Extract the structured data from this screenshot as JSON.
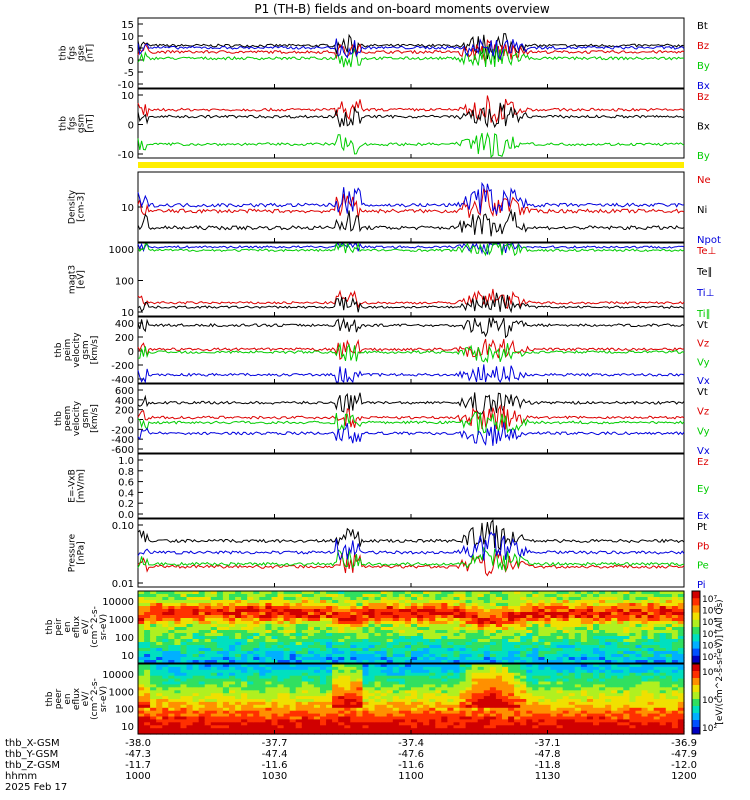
{
  "title": "P1 (TH-B) fields and on-board moments overview",
  "colors": {
    "black": "#000000",
    "red": "#dd0000",
    "green": "#00cc00",
    "blue": "#0000dd",
    "yellow": "#ffee00"
  },
  "bottom_axis": {
    "labels": [
      "thb_X-GSM",
      "thb_Y-GSM",
      "thb_Z-GSM",
      "hhmm",
      "2025 Feb 17"
    ],
    "columns": [
      [
        "-38.0",
        "-47.3",
        "-11.7",
        "1000"
      ],
      [
        "-37.7",
        "-47.4",
        "-11.6",
        "1030"
      ],
      [
        "-37.4",
        "-47.6",
        "-11.6",
        "1100"
      ],
      [
        "-37.1",
        "-47.8",
        "-11.8",
        "1130"
      ],
      [
        "-36.9",
        "-47.9",
        "-12.0",
        "1200"
      ]
    ]
  },
  "chart_data": [
    {
      "type": "line",
      "id": "fgs_gse",
      "ylabel_lines": [
        "thb",
        "fgs",
        "gse",
        "[nT]"
      ],
      "ylim": [
        -15,
        18
      ],
      "yticks": [
        "15",
        "10",
        "5",
        "0",
        "-5",
        "-10"
      ],
      "series": [
        {
          "name": "Bt",
          "color": "black",
          "level": 5
        },
        {
          "name": "Bz",
          "color": "red",
          "level": 2
        },
        {
          "name": "By",
          "color": "green",
          "level": -1
        },
        {
          "name": "Bx",
          "color": "blue",
          "level": 4
        }
      ]
    },
    {
      "type": "line",
      "id": "fgs_gsm",
      "ylabel_lines": [
        "thb",
        "fgs",
        "gsm",
        "[nT]"
      ],
      "ylim": [
        -18,
        22
      ],
      "yticks": [
        "10",
        "0",
        "-10"
      ],
      "series": [
        {
          "name": "Bz",
          "color": "red",
          "level": 10
        },
        {
          "name": "Bx",
          "color": "black",
          "level": 6
        },
        {
          "name": "By",
          "color": "green",
          "level": -10
        }
      ]
    },
    {
      "type": "line",
      "id": "density",
      "ylabel_lines": [
        "Density",
        "[cm-3]"
      ],
      "log": true,
      "ylim": [
        2,
        60
      ],
      "yticks": [
        "10"
      ],
      "series": [
        {
          "name": "Ne",
          "color": "red",
          "level": 9
        },
        {
          "name": "Ni",
          "color": "black",
          "level": 4
        },
        {
          "name": "Npot",
          "color": "blue",
          "level": 12
        }
      ]
    },
    {
      "type": "line",
      "id": "temperature",
      "ylabel_lines": [
        "magt3",
        "[eV]"
      ],
      "log": true,
      "ylim": [
        5,
        1500
      ],
      "yticks": [
        "1000",
        "100",
        "10"
      ],
      "series": [
        {
          "name": "Te⊥",
          "color": "red",
          "level": 14
        },
        {
          "name": "Te∥",
          "color": "black",
          "level": 10
        },
        {
          "name": "Ti⊥",
          "color": "blue",
          "level": 1100
        },
        {
          "name": "Ti∥",
          "color": "green",
          "level": 850
        }
      ]
    },
    {
      "type": "line",
      "id": "peim_velocity",
      "ylabel_lines": [
        "thb",
        "peim",
        "velocity",
        "gsm",
        "[km/s]"
      ],
      "ylim": [
        -480,
        480
      ],
      "yticks": [
        "400",
        "200",
        "0",
        "-200",
        "-400"
      ],
      "series": [
        {
          "name": "Vt",
          "color": "black",
          "level": 360
        },
        {
          "name": "Vz",
          "color": "red",
          "level": 10
        },
        {
          "name": "Vy",
          "color": "green",
          "level": -30
        },
        {
          "name": "Vx",
          "color": "blue",
          "level": -360
        }
      ]
    },
    {
      "type": "line",
      "id": "peem_velocity",
      "ylabel_lines": [
        "thb",
        "peem",
        "velocity",
        "gsm",
        "[km/s]"
      ],
      "ylim": [
        -700,
        700
      ],
      "yticks": [
        "600",
        "400",
        "200",
        "0",
        "-200",
        "-400",
        "-600"
      ],
      "series": [
        {
          "name": "Vt",
          "color": "black",
          "level": 320
        },
        {
          "name": "Vz",
          "color": "red",
          "level": 20
        },
        {
          "name": "Vy",
          "color": "green",
          "level": -80
        },
        {
          "name": "Vx",
          "color": "blue",
          "level": -300
        }
      ]
    },
    {
      "type": "line",
      "id": "efield",
      "ylabel_lines": [
        "E=-VxB",
        "[mV/m]"
      ],
      "ylim": [
        0,
        1
      ],
      "yticks": [
        "1.0",
        "0.8",
        "0.6",
        "0.4",
        "0.2",
        "0.0"
      ],
      "series": [
        {
          "name": "Ez",
          "color": "red"
        },
        {
          "name": "Ey",
          "color": "green"
        },
        {
          "name": "Ex",
          "color": "blue"
        }
      ]
    },
    {
      "type": "line",
      "id": "pressure",
      "ylabel_lines": [
        "Pressure",
        "[nPa]"
      ],
      "log": true,
      "ylim": [
        0.005,
        0.3
      ],
      "yticks": [
        "0.10",
        "0.01"
      ],
      "series": [
        {
          "name": "Pt",
          "color": "black",
          "level": 0.08
        },
        {
          "name": "Pb",
          "color": "red",
          "level": 0.017
        },
        {
          "name": "Pe",
          "color": "green",
          "level": 0.02
        },
        {
          "name": "Pi",
          "color": "blue",
          "level": 0.04
        }
      ]
    },
    {
      "type": "heatmap",
      "id": "peir_en_eflux",
      "ylabel_lines": [
        "thb",
        "peir",
        "en",
        "eflux",
        "eV/",
        "(cm^2-s-",
        "sr-eV)"
      ],
      "yticks": [
        "10000",
        "1000",
        "100",
        "10"
      ]
    },
    {
      "type": "heatmap",
      "id": "peer_en_eflux",
      "ylabel_lines": [
        "thb",
        "peer",
        "en",
        "eflux",
        "eV/",
        "(cm^2-s-",
        "sr-eV)"
      ],
      "yticks": [
        "10000",
        "1000",
        "100",
        "10"
      ]
    }
  ],
  "colorbars": [
    {
      "ticks": [
        "10⁷",
        "10⁶",
        "10⁵",
        "10⁴",
        "10³",
        "10²"
      ]
    },
    {
      "ticks": [
        "10⁶",
        "10⁴",
        "10²"
      ]
    }
  ],
  "colorbar_label": "[eV/(cm^2-s-sr-eV)] (All Qs)"
}
